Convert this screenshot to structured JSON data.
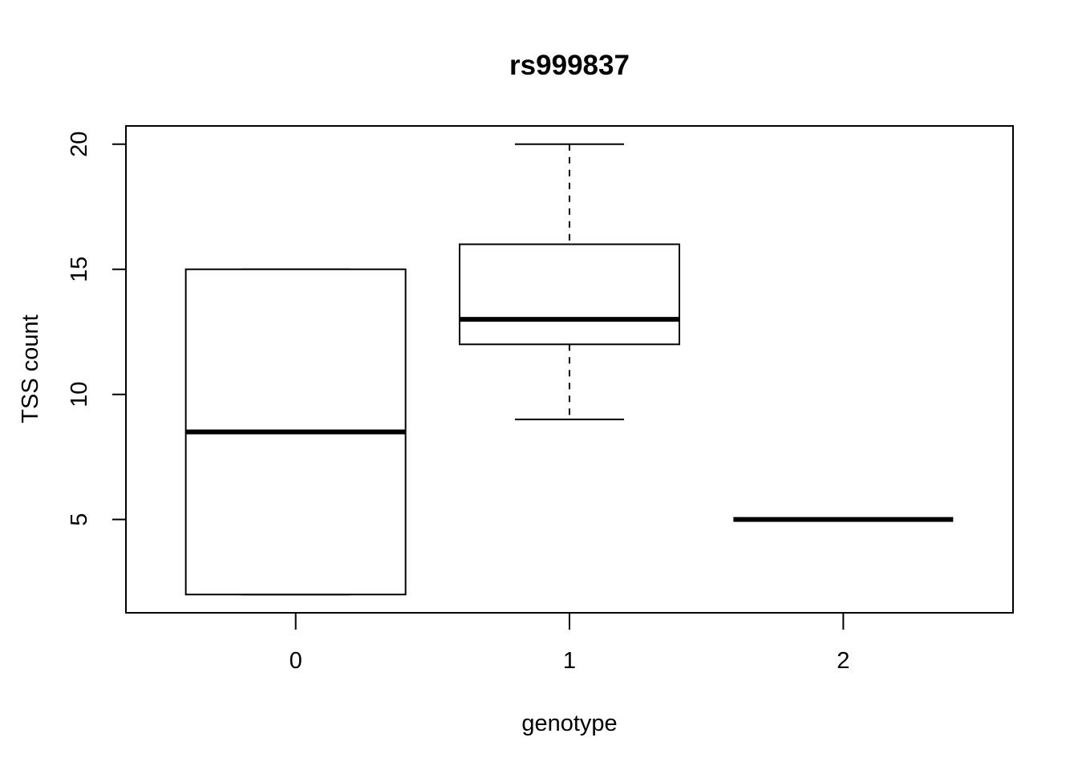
{
  "chart_data": {
    "type": "box",
    "title": "rs999837",
    "xlabel": "genotype",
    "ylabel": "TSS count",
    "categories": [
      "0",
      "1",
      "2"
    ],
    "ylim": [
      1.27,
      20.73
    ],
    "yticks": [
      5,
      10,
      15,
      20
    ],
    "ytick_labels": [
      "5",
      "10",
      "15",
      "20"
    ],
    "boxes": [
      {
        "category": "0",
        "whisker_low": 2,
        "q1": 2,
        "median": 8.5,
        "q3": 15,
        "whisker_high": 15
      },
      {
        "category": "1",
        "whisker_low": 9,
        "q1": 12,
        "median": 13,
        "q3": 16,
        "whisker_high": 20
      },
      {
        "category": "2",
        "whisker_low": 5,
        "q1": 5,
        "median": 5,
        "q3": 5,
        "whisker_high": 5
      }
    ],
    "colors": {
      "stroke": "#000000",
      "fill": "#ffffff"
    }
  }
}
